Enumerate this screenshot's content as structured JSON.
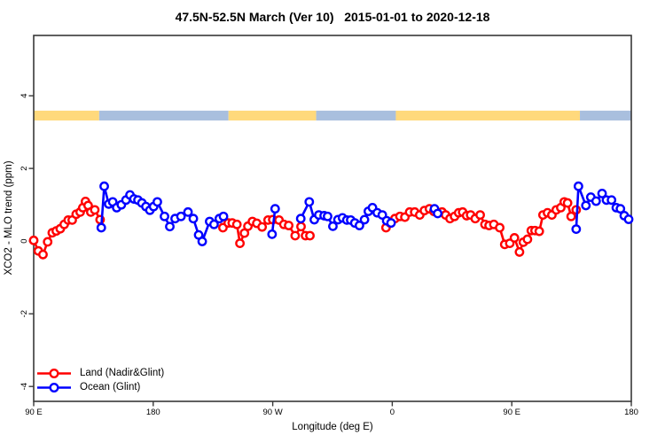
{
  "title": "47.5N-52.5N March (Ver 10)   2015-01-01 to 2020-12-18",
  "legend": {
    "items": [
      {
        "label": "Land (Nadir&Glint)",
        "color": "#FF0000"
      },
      {
        "label": "Ocean (Glint)",
        "color": "#0000FF"
      }
    ]
  },
  "chart_data": {
    "type": "line",
    "title": "47.5N-52.5N March (Ver 10)   2015-01-01 to 2020-12-18",
    "xlabel": "Longitude (deg E)",
    "ylabel": "XCO2 - MLO trend (ppm)",
    "xlim": [
      90,
      540
    ],
    "ylim": [
      -4.41,
      5.66
    ],
    "grid": false,
    "legend_position": "bottom-left-inside",
    "axis_color": "#383838",
    "x_ticks": [
      {
        "value": 90,
        "label": "90 E"
      },
      {
        "value": 180,
        "label": "180"
      },
      {
        "value": 270,
        "label": "90 W"
      },
      {
        "value": 360,
        "label": "0"
      },
      {
        "value": 450,
        "label": "90 E"
      },
      {
        "value": 540,
        "label": "180"
      }
    ],
    "y_ticks": [
      {
        "value": -4,
        "label": "-4"
      },
      {
        "value": -2,
        "label": "-2"
      },
      {
        "value": 0,
        "label": "0"
      },
      {
        "value": 2,
        "label": "2"
      },
      {
        "value": 4,
        "label": "4"
      }
    ],
    "surface_band": {
      "description": "land/ocean surface type stripe vs longitude",
      "y_range": [
        3.32,
        3.59
      ],
      "colors": {
        "land": "#FFD97C",
        "ocean": "#A9BFDE"
      },
      "segments": [
        {
          "from": 90,
          "to": 139.3,
          "type": "land"
        },
        {
          "from": 139.3,
          "to": 236.7,
          "type": "ocean"
        },
        {
          "from": 236.7,
          "to": 302.7,
          "type": "land"
        },
        {
          "from": 302.7,
          "to": 362.7,
          "type": "ocean"
        },
        {
          "from": 362.7,
          "to": 501.3,
          "type": "land"
        },
        {
          "from": 501.3,
          "to": 540,
          "type": "ocean"
        }
      ]
    },
    "series": [
      {
        "id": "land",
        "name": "Land (Nadir&Glint)",
        "color": "#FF0000",
        "marker": "open-circle",
        "segments": [
          [
            [
              90,
              0.02
            ],
            [
              93.5,
              -0.27
            ],
            [
              97,
              -0.37
            ],
            [
              100.5,
              -0.02
            ],
            [
              104,
              0.23
            ],
            [
              107,
              0.28
            ],
            [
              110,
              0.34
            ],
            [
              113,
              0.46
            ],
            [
              116,
              0.58
            ],
            [
              119,
              0.58
            ],
            [
              122,
              0.74
            ],
            [
              125,
              0.8
            ],
            [
              127,
              0.92
            ],
            [
              129,
              1.09
            ],
            [
              131,
              0.98
            ],
            [
              133,
              0.8
            ],
            [
              136,
              0.86
            ],
            [
              140,
              0.59
            ]
          ],
          [
            [
              232.5,
              0.37
            ],
            [
              236.5,
              0.5
            ],
            [
              239.5,
              0.5
            ],
            [
              243,
              0.46
            ],
            [
              245.3,
              -0.06
            ],
            [
              248.7,
              0.22
            ],
            [
              251.3,
              0.41
            ],
            [
              254.7,
              0.54
            ],
            [
              258,
              0.49
            ],
            [
              262,
              0.39
            ],
            [
              266.5,
              0.58
            ],
            [
              270,
              0.59
            ],
            [
              274.7,
              0.58
            ],
            [
              278.4,
              0.46
            ],
            [
              282,
              0.43
            ],
            [
              286.9,
              0.15
            ],
            [
              291.3,
              0.4
            ],
            [
              294.7,
              0.15
            ],
            [
              298,
              0.15
            ]
          ],
          [
            [
              355.3,
              0.37
            ],
            [
              358.5,
              0.5
            ],
            [
              362,
              0.62
            ],
            [
              365.8,
              0.68
            ],
            [
              369.5,
              0.66
            ],
            [
              373.1,
              0.8
            ],
            [
              376.9,
              0.8
            ],
            [
              380.7,
              0.72
            ],
            [
              384.2,
              0.84
            ],
            [
              388,
              0.89
            ],
            [
              391.3,
              0.82
            ],
            [
              394.5,
              0.78
            ],
            [
              397.5,
              0.8
            ],
            [
              400.2,
              0.72
            ],
            [
              403.5,
              0.62
            ],
            [
              406.9,
              0.68
            ],
            [
              410,
              0.78
            ],
            [
              413,
              0.8
            ],
            [
              416,
              0.7
            ],
            [
              419,
              0.72
            ],
            [
              422.5,
              0.62
            ],
            [
              426.2,
              0.72
            ],
            [
              429.8,
              0.46
            ],
            [
              432.9,
              0.43
            ],
            [
              436.5,
              0.46
            ],
            [
              440.9,
              0.37
            ],
            [
              444.7,
              -0.09
            ],
            [
              448.5,
              -0.06
            ],
            [
              452,
              0.09
            ],
            [
              455.8,
              -0.3
            ],
            [
              458.7,
              -0.03
            ],
            [
              461.8,
              0.05
            ],
            [
              464.7,
              0.29
            ],
            [
              467.5,
              0.29
            ],
            [
              470.7,
              0.27
            ],
            [
              473.5,
              0.72
            ],
            [
              476.9,
              0.78
            ],
            [
              480.2,
              0.72
            ],
            [
              483.5,
              0.86
            ],
            [
              486.9,
              0.92
            ],
            [
              489.5,
              1.08
            ],
            [
              492,
              1.05
            ],
            [
              494.7,
              0.68
            ],
            [
              498.5,
              0.86
            ]
          ]
        ]
      },
      {
        "id": "ocean",
        "name": "Ocean (Glint)",
        "color": "#0000FF",
        "marker": "open-circle",
        "segments": [
          [
            [
              140.9,
              0.37
            ],
            [
              143.1,
              1.51
            ],
            [
              146.5,
              1.02
            ],
            [
              149.5,
              1.08
            ],
            [
              152.5,
              0.92
            ],
            [
              156,
              1.0
            ],
            [
              159.5,
              1.13
            ],
            [
              162.5,
              1.27
            ],
            [
              165.5,
              1.16
            ],
            [
              168.5,
              1.13
            ],
            [
              171.5,
              1.05
            ],
            [
              174.5,
              0.95
            ],
            [
              177.5,
              0.85
            ],
            [
              180.3,
              0.95
            ],
            [
              183.1,
              1.08
            ],
            [
              188.5,
              0.68
            ],
            [
              192.5,
              0.4
            ],
            [
              196.5,
              0.62
            ],
            [
              200.9,
              0.68
            ],
            [
              206.2,
              0.8
            ],
            [
              210.2,
              0.62
            ],
            [
              214.2,
              0.17
            ],
            [
              216.9,
              -0.01
            ],
            [
              222.5,
              0.54
            ],
            [
              225.8,
              0.46
            ],
            [
              229.8,
              0.62
            ],
            [
              232.9,
              0.68
            ]
          ],
          [
            [
              269.5,
              0.19
            ],
            [
              271.8,
              0.89
            ]
          ],
          [
            [
              291.1,
              0.62
            ],
            [
              297.5,
              1.08
            ],
            [
              301.3,
              0.59
            ],
            [
              304.7,
              0.72
            ],
            [
              308.7,
              0.7
            ],
            [
              311.3,
              0.68
            ],
            [
              315.3,
              0.41
            ],
            [
              319.1,
              0.59
            ],
            [
              322.5,
              0.64
            ],
            [
              325.8,
              0.58
            ],
            [
              328.7,
              0.58
            ],
            [
              331.8,
              0.5
            ],
            [
              335.3,
              0.43
            ],
            [
              339.1,
              0.59
            ],
            [
              342,
              0.82
            ],
            [
              345.1,
              0.92
            ],
            [
              348.7,
              0.78
            ],
            [
              352.5,
              0.72
            ],
            [
              355.8,
              0.56
            ],
            [
              359.1,
              0.5
            ]
          ],
          [
            [
              391.8,
              0.89
            ],
            [
              394.2,
              0.76
            ]
          ],
          [
            [
              498.5,
              0.33
            ],
            [
              500.2,
              1.51
            ],
            [
              505.8,
              0.98
            ],
            [
              509.5,
              1.21
            ],
            [
              513.5,
              1.1
            ],
            [
              518,
              1.31
            ],
            [
              521.3,
              1.13
            ],
            [
              525.1,
              1.13
            ],
            [
              528.7,
              0.92
            ],
            [
              531.8,
              0.89
            ],
            [
              534.7,
              0.7
            ],
            [
              538,
              0.6
            ]
          ]
        ]
      }
    ]
  }
}
